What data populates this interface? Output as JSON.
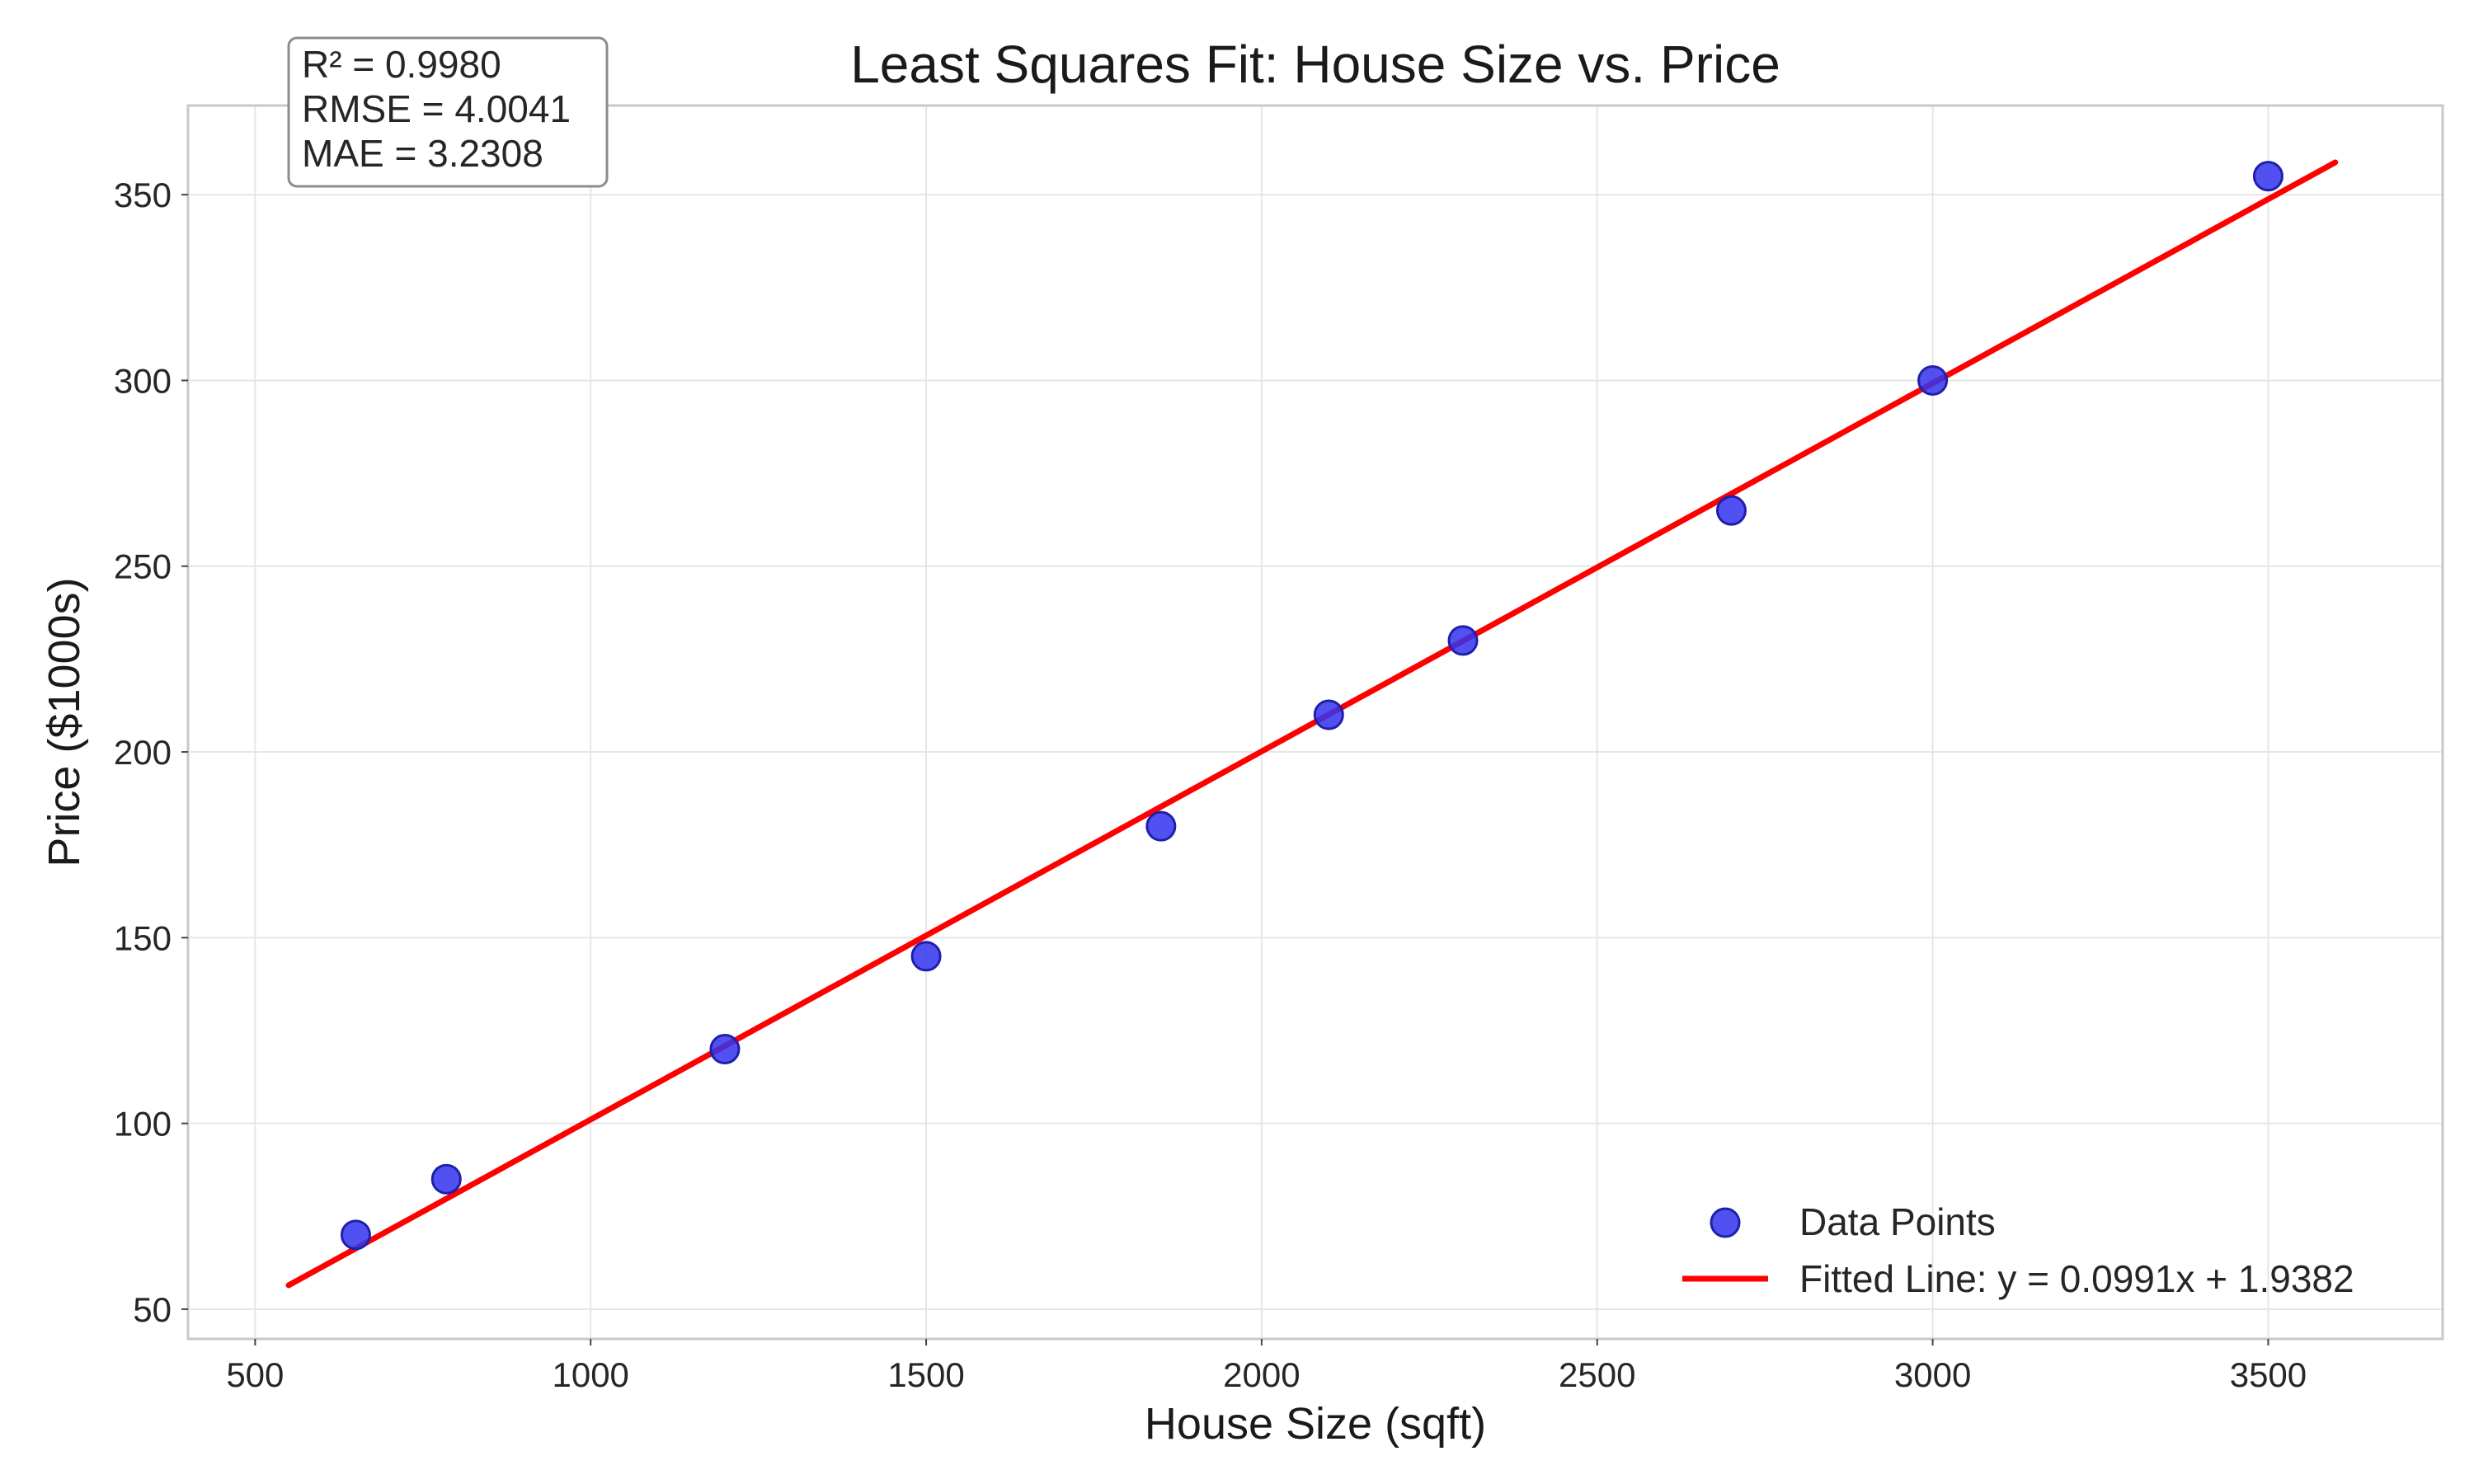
{
  "chart_data": {
    "type": "scatter",
    "title": "Least Squares Fit: House Size vs. Price",
    "xlabel": "House Size (sqft)",
    "ylabel": "Price ($1000s)",
    "xlim": [
      400,
      3760
    ],
    "ylim": [
      42,
      374
    ],
    "x_ticks": [
      500,
      1000,
      1500,
      2000,
      2500,
      3000,
      3500
    ],
    "y_ticks": [
      50,
      100,
      150,
      200,
      250,
      300,
      350
    ],
    "grid": true,
    "legend_position": "lower-right",
    "series": [
      {
        "name": "Data Points",
        "kind": "scatter",
        "color": "#3333ee",
        "points": [
          {
            "x": 650,
            "y": 70
          },
          {
            "x": 785,
            "y": 85
          },
          {
            "x": 1200,
            "y": 120
          },
          {
            "x": 1500,
            "y": 145
          },
          {
            "x": 1850,
            "y": 180
          },
          {
            "x": 2100,
            "y": 210
          },
          {
            "x": 2300,
            "y": 230
          },
          {
            "x": 2700,
            "y": 265
          },
          {
            "x": 3000,
            "y": 300
          },
          {
            "x": 3500,
            "y": 355
          }
        ]
      },
      {
        "name": "Fitted Line: y = 0.0991x + 1.9382",
        "kind": "line",
        "color": "#ff0000",
        "slope": 0.0991,
        "intercept": 1.9382,
        "x_range": [
          550,
          3600
        ]
      }
    ],
    "annotations": {
      "stats": [
        "R² = 0.9980",
        "RMSE = 4.0041",
        "MAE = 3.2308"
      ]
    }
  }
}
